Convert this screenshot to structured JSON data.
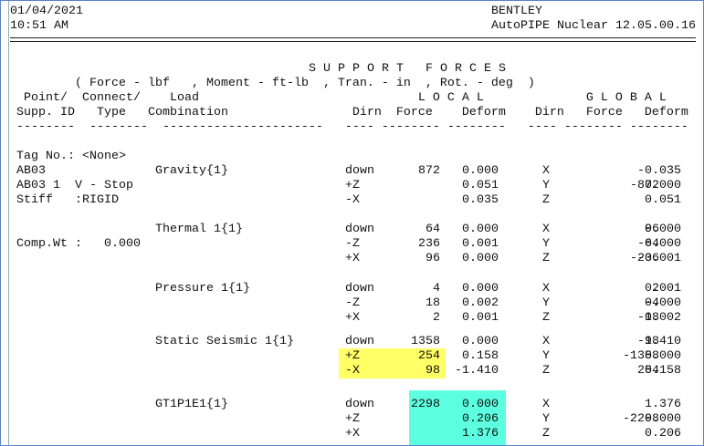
{
  "header": {
    "date": "01/04/2021",
    "time": "10:51 AM",
    "company": "BENTLEY",
    "product": "AutoPIPE Nuclear 12.05.00.16"
  },
  "title": "S U P P O R T   F O R C E S",
  "units": "( Force - lbf   , Moment - ft-lb  , Tran. - in  , Rot. - deg  )",
  "column_header_1": " Point/  Connect/    Load                              L O C A L              G L O B A L",
  "column_header_2": "Supp. ID   Type   Combination                 Dirn  Force    Deform    Dirn   Force   Deform",
  "column_rule": "--------  --------  ----------------------   ---- -------- --------   ---- -------- --------",
  "rows": [
    {
      "left": "Tag No.: <None>"
    },
    {
      "left": "AB03",
      "combination": "Gravity{1}",
      "local_dirn": "down",
      "local_force": "872",
      "local_deform": "0.000",
      "global_dirn": "X",
      "global_deform": "-0.035"
    },
    {
      "left": "AB03 1  V - Stop",
      "local_dirn": "+Z",
      "local_deform": "0.051",
      "global_dirn": "Y",
      "global_force": "-872",
      "global_deform": "0.000"
    },
    {
      "left": "Stiff   :RIGID",
      "local_dirn": "-X",
      "local_deform": "0.035",
      "global_dirn": "Z",
      "global_deform": "0.051"
    },
    {
      "combination": "Thermal 1{1}",
      "local_dirn": "down",
      "local_force": "64",
      "local_deform": "0.000",
      "global_dirn": "X",
      "global_force": "96",
      "global_deform": "0.000"
    },
    {
      "left": "Comp.Wt :   0.000",
      "local_dirn": "-Z",
      "local_force": "236",
      "local_deform": "0.001",
      "global_dirn": "Y",
      "global_force": "-64",
      "global_deform": "0.000"
    },
    {
      "local_dirn": "+X",
      "local_force": "96",
      "local_deform": "0.000",
      "global_dirn": "Z",
      "global_force": "-236",
      "global_deform": "-0.001"
    },
    {
      "combination": "Pressure 1{1}",
      "local_dirn": "down",
      "local_force": "4",
      "local_deform": "0.000",
      "global_dirn": "X",
      "global_force": "2",
      "global_deform": "0.001"
    },
    {
      "local_dirn": "-Z",
      "local_force": "18",
      "local_deform": "0.002",
      "global_dirn": "Y",
      "global_force": "-4",
      "global_deform": "0.000"
    },
    {
      "local_dirn": "+X",
      "local_force": "2",
      "local_deform": "0.001",
      "global_dirn": "Z",
      "global_force": "-18",
      "global_deform": "-0.002"
    },
    {
      "combination": "Static Seismic 1{1}",
      "local_dirn": "down",
      "local_force": "1358",
      "local_deform": "0.000",
      "global_dirn": "X",
      "global_force": "-98",
      "global_deform": "1.410"
    },
    {
      "local_dirn": "+Z",
      "local_force": "254",
      "local_deform": "0.158",
      "global_dirn": "Y",
      "global_force": "-1358",
      "global_deform": "0.000"
    },
    {
      "local_dirn": "-X",
      "local_force": "98",
      "local_deform": "-1.410",
      "global_dirn": "Z",
      "global_force": "254",
      "global_deform": "0.158"
    },
    {
      "combination": "GT1P1E1{1}",
      "local_dirn": "down",
      "local_force": "2298",
      "local_deform": "0.000",
      "global_dirn": "X",
      "global_deform": "1.376"
    },
    {
      "local_dirn": "+Z",
      "local_deform": "0.206",
      "global_dirn": "Y",
      "global_force": "-2298",
      "global_deform": "0.000"
    },
    {
      "local_dirn": "+X",
      "local_deform": "1.376",
      "global_dirn": "Z",
      "global_deform": "0.206"
    }
  ]
}
